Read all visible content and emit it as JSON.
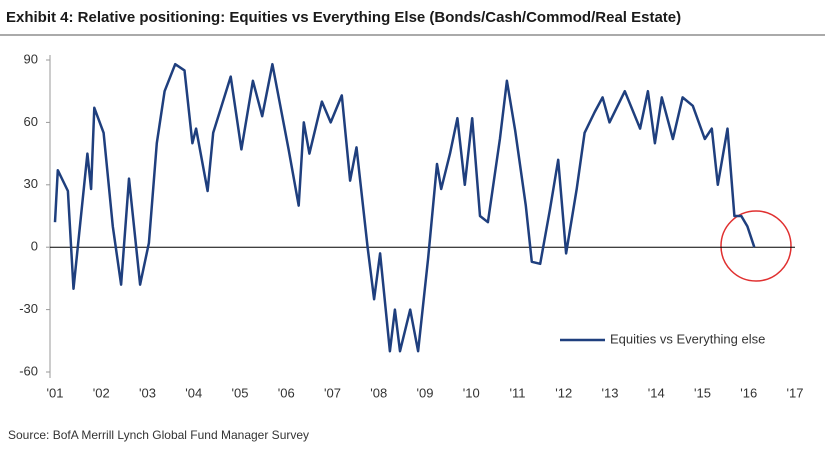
{
  "chart_data": {
    "type": "line",
    "title": "Exhibit 4: Relative positioning: Equities vs Everything Else (Bonds/Cash/Commod/Real Estate)",
    "source": "Source: BofA Merrill Lynch Global Fund Manager Survey",
    "x": [
      2001.0,
      2001.06,
      2001.28,
      2001.4,
      2001.7,
      2001.78,
      2001.85,
      2002.05,
      2002.25,
      2002.43,
      2002.6,
      2002.84,
      2003.03,
      2003.2,
      2003.37,
      2003.6,
      2003.8,
      2003.97,
      2004.05,
      2004.3,
      2004.42,
      2004.8,
      2005.03,
      2005.28,
      2005.48,
      2005.7,
      2006.05,
      2006.27,
      2006.38,
      2006.5,
      2006.77,
      2006.96,
      2007.2,
      2007.38,
      2007.52,
      2007.76,
      2007.9,
      2008.03,
      2008.24,
      2008.35,
      2008.46,
      2008.68,
      2008.85,
      2009.07,
      2009.26,
      2009.35,
      2009.54,
      2009.7,
      2009.86,
      2010.02,
      2010.19,
      2010.36,
      2010.62,
      2010.77,
      2010.95,
      2011.18,
      2011.31,
      2011.49,
      2011.7,
      2011.88,
      2012.05,
      2012.28,
      2012.45,
      2012.67,
      2012.84,
      2012.99,
      2013.32,
      2013.65,
      2013.82,
      2013.97,
      2014.12,
      2014.36,
      2014.57,
      2014.79,
      2015.05,
      2015.2,
      2015.33,
      2015.54,
      2015.69,
      2015.84,
      2015.97,
      2016.12
    ],
    "series": [
      {
        "name": "Equities vs Everything else",
        "color": "#1f3f7e",
        "values": [
          12,
          37,
          27,
          -20,
          45,
          28,
          67,
          55,
          10,
          -18,
          33,
          -18,
          2,
          50,
          75,
          88,
          85,
          50,
          57,
          27,
          55,
          82,
          47,
          80,
          63,
          88,
          47,
          20,
          60,
          45,
          70,
          60,
          73,
          32,
          48,
          0,
          -25,
          -3,
          -50,
          -30,
          -50,
          -30,
          -50,
          -5,
          40,
          28,
          45,
          62,
          30,
          62,
          15,
          12,
          52,
          80,
          56,
          20,
          -7,
          -8,
          18,
          42,
          -3,
          28,
          55,
          65,
          72,
          60,
          75,
          57,
          75,
          50,
          72,
          52,
          72,
          68,
          52,
          57,
          30,
          57,
          15,
          15,
          10,
          0
        ]
      }
    ],
    "xlim": [
      2001,
      2017
    ],
    "xticks": [
      {
        "value": 2001,
        "label": "'01"
      },
      {
        "value": 2002,
        "label": "'02"
      },
      {
        "value": 2003,
        "label": "'03"
      },
      {
        "value": 2004,
        "label": "'04"
      },
      {
        "value": 2005,
        "label": "'05"
      },
      {
        "value": 2006,
        "label": "'06"
      },
      {
        "value": 2007,
        "label": "'07"
      },
      {
        "value": 2008,
        "label": "'08"
      },
      {
        "value": 2009,
        "label": "'09"
      },
      {
        "value": 2010,
        "label": "'10"
      },
      {
        "value": 2011,
        "label": "'11"
      },
      {
        "value": 2012,
        "label": "'12"
      },
      {
        "value": 2013,
        "label": "'13"
      },
      {
        "value": 2014,
        "label": "'14"
      },
      {
        "value": 2015,
        "label": "'15"
      },
      {
        "value": 2016,
        "label": "'16"
      },
      {
        "value": 2017,
        "label": "'17"
      }
    ],
    "ylim": [
      -60,
      90
    ],
    "yticks": [
      -60,
      -30,
      0,
      30,
      60,
      90
    ],
    "legend": "lower right"
  }
}
